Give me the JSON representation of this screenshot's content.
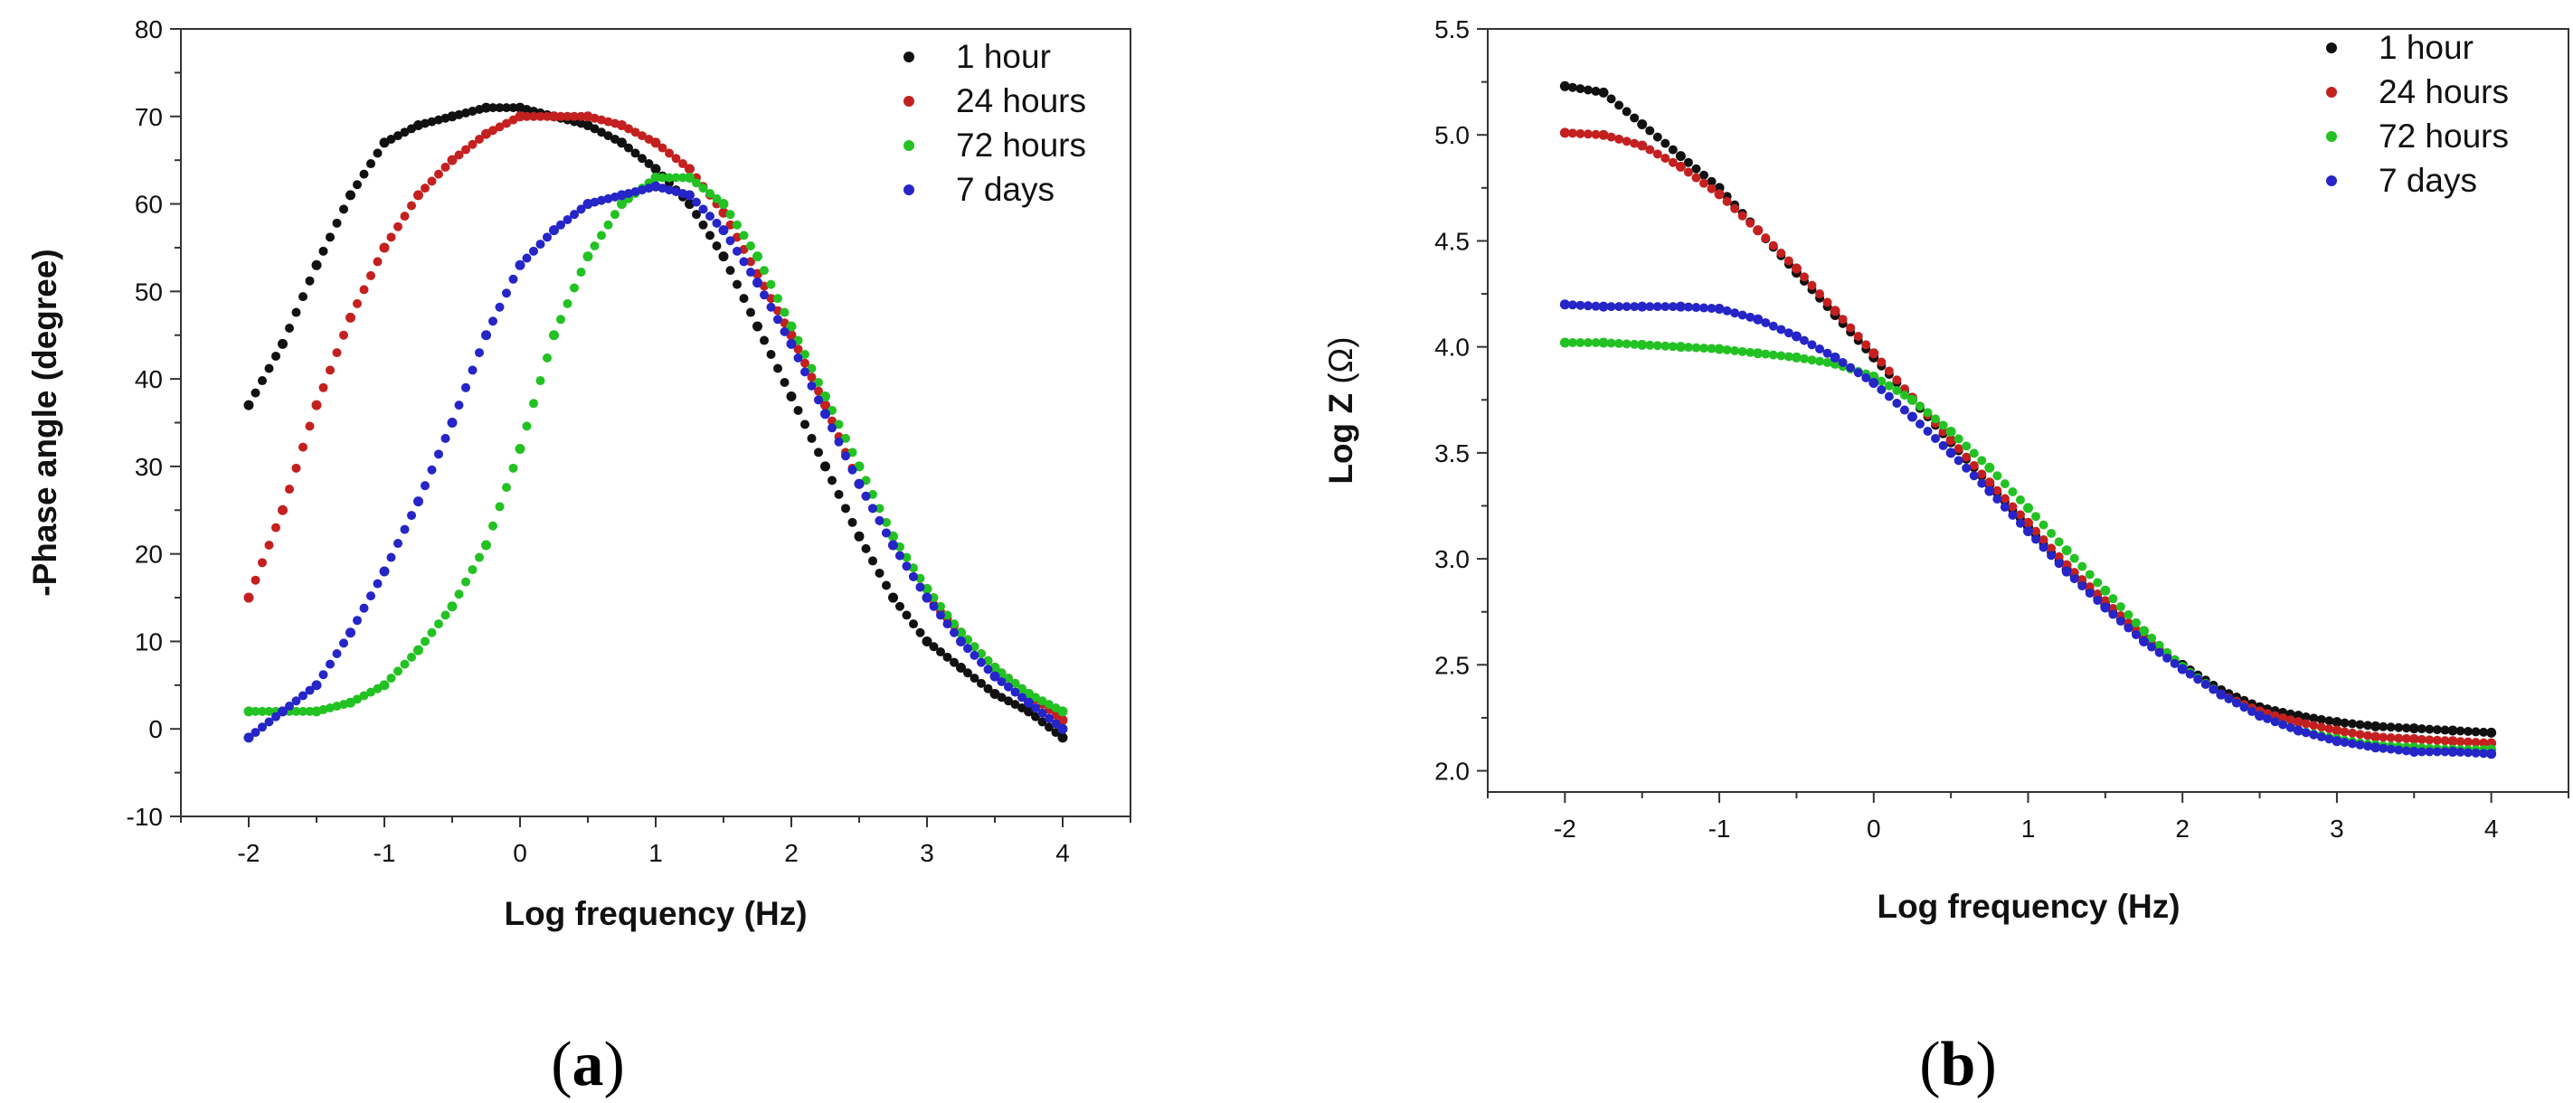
{
  "chart_data": [
    {
      "type": "scatter",
      "panel_label": "(a)",
      "panel_letter": "a",
      "xlabel": "Log frequency (Hz)",
      "ylabel": "-Phase angle (degree)",
      "xlim": [
        -2.5,
        4.5
      ],
      "ylim": [
        -10,
        80
      ],
      "xticks": [
        -2,
        -1,
        0,
        1,
        2,
        3,
        4
      ],
      "yticks": [
        -10,
        0,
        10,
        20,
        30,
        40,
        50,
        60,
        70,
        80
      ],
      "legend_position": "top-right",
      "colors": {
        "1 hour": "#111111",
        "24 hours": "#c42020",
        "72 hours": "#22c222",
        "7 days": "#2525c8"
      },
      "series": [
        {
          "name": "1 hour",
          "x": [
            -2.0,
            -1.75,
            -1.5,
            -1.25,
            -1.0,
            -0.75,
            -0.5,
            -0.25,
            0.0,
            0.25,
            0.5,
            0.75,
            1.0,
            1.25,
            1.5,
            1.75,
            2.0,
            2.25,
            2.5,
            2.75,
            3.0,
            3.25,
            3.5,
            3.75,
            4.0
          ],
          "y": [
            37,
            44,
            53,
            61,
            67,
            69,
            70,
            71,
            71,
            70,
            69,
            67,
            64,
            60,
            54,
            46,
            38,
            30,
            22,
            15,
            10,
            7,
            4,
            2,
            -1
          ]
        },
        {
          "name": "24 hours",
          "x": [
            -2.0,
            -1.75,
            -1.5,
            -1.25,
            -1.0,
            -0.75,
            -0.5,
            -0.25,
            0.0,
            0.25,
            0.5,
            0.75,
            1.0,
            1.25,
            1.5,
            1.75,
            2.0,
            2.25,
            2.5,
            2.75,
            3.0,
            3.25,
            3.5,
            3.75,
            4.0
          ],
          "y": [
            15,
            25,
            37,
            47,
            55,
            61,
            65,
            68,
            70,
            70,
            70,
            69,
            67,
            64,
            59,
            52,
            45,
            37,
            28,
            21,
            15,
            11,
            7,
            4,
            1
          ]
        },
        {
          "name": "72 hours",
          "x": [
            -2.0,
            -1.75,
            -1.5,
            -1.25,
            -1.0,
            -0.75,
            -0.5,
            -0.25,
            0.0,
            0.25,
            0.5,
            0.75,
            1.0,
            1.25,
            1.5,
            1.75,
            2.0,
            2.25,
            2.5,
            2.75,
            3.0,
            3.25,
            3.5,
            3.75,
            4.0
          ],
          "y": [
            2,
            2,
            2,
            3,
            5,
            9,
            14,
            21,
            32,
            45,
            54,
            60,
            63,
            63,
            60,
            54,
            46,
            38,
            30,
            22,
            16,
            11,
            7,
            4,
            2
          ]
        },
        {
          "name": "7 days",
          "x": [
            -2.0,
            -1.75,
            -1.5,
            -1.25,
            -1.0,
            -0.75,
            -0.5,
            -0.25,
            0.0,
            0.25,
            0.5,
            0.75,
            1.0,
            1.25,
            1.5,
            1.75,
            2.0,
            2.25,
            2.5,
            2.75,
            3.0,
            3.25,
            3.5,
            3.75,
            4.0
          ],
          "y": [
            -1,
            2,
            5,
            11,
            18,
            26,
            35,
            45,
            53,
            57,
            60,
            61,
            62,
            61,
            57,
            51,
            44,
            36,
            28,
            21,
            15,
            10,
            6,
            3,
            0
          ]
        }
      ]
    },
    {
      "type": "scatter",
      "panel_label": "(b)",
      "panel_letter": "b",
      "xlabel": "Log frequency (Hz)",
      "ylabel_main": "Log Z ",
      "ylabel_unit": "(Ω)",
      "xlim": [
        -2.5,
        4.5
      ],
      "ylim": [
        1.9,
        5.5
      ],
      "xticks": [
        -2,
        -1,
        0,
        1,
        2,
        3,
        4
      ],
      "yticks": [
        2.0,
        2.5,
        3.0,
        3.5,
        4.0,
        4.5,
        5.0,
        5.5
      ],
      "legend_position": "top-right",
      "colors": {
        "1 hour": "#111111",
        "24 hours": "#c42020",
        "72 hours": "#22c222",
        "7 days": "#2525c8"
      },
      "series": [
        {
          "name": "1 hour",
          "x": [
            -2.0,
            -1.75,
            -1.5,
            -1.25,
            -1.0,
            -0.75,
            -0.5,
            -0.25,
            0.0,
            0.25,
            0.5,
            0.75,
            1.0,
            1.25,
            1.5,
            1.75,
            2.0,
            2.25,
            2.5,
            2.75,
            3.0,
            3.25,
            3.5,
            3.75,
            4.0
          ],
          "y": [
            5.23,
            5.2,
            5.05,
            4.9,
            4.75,
            4.55,
            4.35,
            4.15,
            3.95,
            3.75,
            3.55,
            3.35,
            3.15,
            2.95,
            2.78,
            2.62,
            2.5,
            2.38,
            2.3,
            2.26,
            2.23,
            2.21,
            2.2,
            2.19,
            2.18
          ]
        },
        {
          "name": "24 hours",
          "x": [
            -2.0,
            -1.75,
            -1.5,
            -1.25,
            -1.0,
            -0.75,
            -0.5,
            -0.25,
            0.0,
            0.25,
            0.5,
            0.75,
            1.0,
            1.25,
            1.5,
            1.75,
            2.0,
            2.25,
            2.5,
            2.75,
            3.0,
            3.25,
            3.5,
            3.75,
            4.0
          ],
          "y": [
            5.01,
            5.0,
            4.95,
            4.85,
            4.72,
            4.55,
            4.37,
            4.17,
            3.97,
            3.76,
            3.56,
            3.36,
            3.17,
            2.97,
            2.8,
            2.63,
            2.48,
            2.36,
            2.28,
            2.23,
            2.19,
            2.16,
            2.15,
            2.14,
            2.13
          ]
        },
        {
          "name": "72 hours",
          "x": [
            -2.0,
            -1.75,
            -1.5,
            -1.25,
            -1.0,
            -0.75,
            -0.5,
            -0.25,
            0.0,
            0.25,
            0.5,
            0.75,
            1.0,
            1.25,
            1.5,
            1.75,
            2.0,
            2.25,
            2.5,
            2.75,
            3.0,
            3.25,
            3.5,
            3.75,
            4.0
          ],
          "y": [
            4.02,
            4.02,
            4.01,
            4.0,
            3.99,
            3.97,
            3.95,
            3.92,
            3.86,
            3.75,
            3.6,
            3.43,
            3.24,
            3.04,
            2.85,
            2.66,
            2.49,
            2.36,
            2.26,
            2.19,
            2.15,
            2.12,
            2.11,
            2.1,
            2.1
          ]
        },
        {
          "name": "7 days",
          "x": [
            -2.0,
            -1.75,
            -1.5,
            -1.25,
            -1.0,
            -0.75,
            -0.5,
            -0.25,
            0.0,
            0.25,
            0.5,
            0.75,
            1.0,
            1.25,
            1.5,
            1.75,
            2.0,
            2.25,
            2.5,
            2.75,
            3.0,
            3.25,
            3.5,
            3.75,
            4.0
          ],
          "y": [
            4.2,
            4.19,
            4.19,
            4.19,
            4.18,
            4.13,
            4.05,
            3.95,
            3.83,
            3.67,
            3.5,
            3.32,
            3.13,
            2.94,
            2.77,
            2.61,
            2.48,
            2.36,
            2.26,
            2.19,
            2.14,
            2.11,
            2.09,
            2.09,
            2.08
          ]
        }
      ]
    }
  ]
}
